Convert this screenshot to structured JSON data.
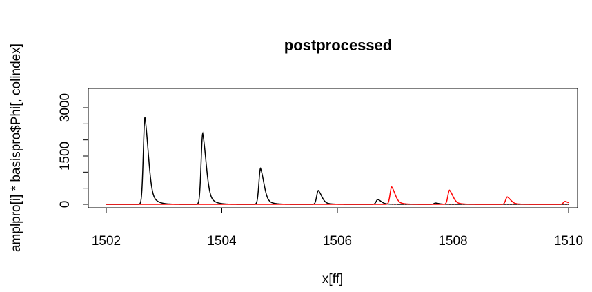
{
  "chart_data": {
    "type": "line",
    "title": "postprocessed",
    "xlabel": "x[ff]",
    "ylabel": "amplpro[i] * basispro$Phi[, colindex]",
    "xlim": [
      1502,
      1510
    ],
    "ylim": [
      -50,
      3050
    ],
    "x_ticks": [
      "1502",
      "1504",
      "1506",
      "1508",
      "1510"
    ],
    "y_ticks": [
      "0",
      "1500",
      "3000"
    ],
    "y_minor_ticks": [
      0,
      500,
      1000,
      1500,
      2000,
      2500,
      3000
    ],
    "grid": false,
    "series": [
      {
        "color": "#000000",
        "peaks": [
          {
            "center": 1502.67,
            "height": 2700
          },
          {
            "center": 1503.67,
            "height": 2200
          },
          {
            "center": 1504.67,
            "height": 1120
          },
          {
            "center": 1505.67,
            "height": 430
          },
          {
            "center": 1506.7,
            "height": 150
          },
          {
            "center": 1507.7,
            "height": 40
          }
        ]
      },
      {
        "color": "#ff0000",
        "peaks": [
          {
            "center": 1506.94,
            "height": 540
          },
          {
            "center": 1507.94,
            "height": 440
          },
          {
            "center": 1508.94,
            "height": 230
          },
          {
            "center": 1509.94,
            "height": 90
          }
        ]
      }
    ]
  }
}
